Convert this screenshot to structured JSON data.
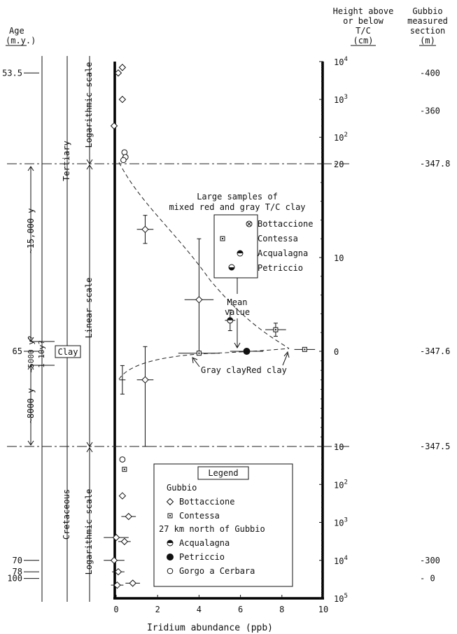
{
  "headers": {
    "age": [
      "Age",
      "(m.y.)"
    ],
    "height": [
      "Height above",
      "or below",
      "T/C",
      "(cm)"
    ],
    "section": [
      "Gubbio",
      "measured",
      "section",
      "(m)"
    ]
  },
  "scales": {
    "log_top": "Logarithmic scale",
    "linear": "Linear scale",
    "log_bottom": "Logarithmic scale"
  },
  "periods": {
    "tertiary": "Tertiary",
    "clay": "Clay",
    "cretaceous": "Cretaceous"
  },
  "durations": {
    "d15000": "~15,000 y",
    "d5000": "~5000 y?",
    "d110": "1-10y?",
    "d8000": "~8000 y"
  },
  "age_labels": [
    {
      "label": "53.5",
      "height": 5000
    },
    {
      "label": "65",
      "height": 0
    },
    {
      "label": "70",
      "height": -10000
    },
    {
      "label": "78",
      "height": -20000
    },
    {
      "label": "100",
      "height": -30000
    }
  ],
  "section_labels": [
    {
      "label": "-400",
      "height": 5000
    },
    {
      "label": "-360",
      "height": 500
    },
    {
      "label": "-347.8",
      "height": 20
    },
    {
      "label": "-347.6",
      "height": 0
    },
    {
      "label": "-347.5",
      "height": -10
    },
    {
      "label": "-300",
      "height": -10000
    },
    {
      "label": "- 0",
      "height": -30000
    }
  ],
  "height_ticks": [
    {
      "label": "10",
      "sup": "4",
      "height": 10000
    },
    {
      "label": "10",
      "sup": "3",
      "height": 1000
    },
    {
      "label": "10",
      "sup": "2",
      "height": 100
    },
    {
      "label": "20",
      "sup": "",
      "height": 20
    },
    {
      "label": "10",
      "sup": "",
      "height": 10
    },
    {
      "label": "0",
      "sup": "",
      "height": 0
    },
    {
      "label": "10",
      "sup": "",
      "height": -10
    },
    {
      "label": "10",
      "sup": "2",
      "height": -100
    },
    {
      "label": "10",
      "sup": "3",
      "height": -1000
    },
    {
      "label": "10",
      "sup": "4",
      "height": -10000
    },
    {
      "label": "10",
      "sup": "5",
      "height": -100000
    }
  ],
  "chart_data": {
    "type": "scatter",
    "xlabel": "Iridium abundance (ppb)",
    "ylabel": "Height above or below T/C (cm)",
    "xlim": [
      0,
      10
    ],
    "x_ticks": [
      0,
      2,
      4,
      6,
      8,
      10
    ],
    "y_scale": "log / linear / log (linear between -10 and 20 cm)",
    "series": [
      {
        "name": "Bottaccione",
        "marker": "diamond",
        "points": [
          {
            "x": 0.3,
            "y": 7000
          },
          {
            "x": 0.1,
            "y": 5000
          },
          {
            "x": 0.3,
            "y": 1000
          },
          {
            "x": -0.1,
            "y": 200
          },
          {
            "x": 1.4,
            "y": 13
          },
          {
            "x": 4.0,
            "y": 5.5
          },
          {
            "x": 1.4,
            "y": -3
          },
          {
            "x": 0.3,
            "y": -200
          },
          {
            "x": 0.6,
            "y": -700
          },
          {
            "x": 0.0,
            "y": -2500
          },
          {
            "x": 0.4,
            "y": -3200
          },
          {
            "x": -0.1,
            "y": -10000
          },
          {
            "x": 0.1,
            "y": -20000
          },
          {
            "x": 0.8,
            "y": -40000
          },
          {
            "x": 0.05,
            "y": -45000
          }
        ]
      },
      {
        "name": "Contessa",
        "marker": "square",
        "points": [
          {
            "x": 4.0,
            "y": -0.2
          },
          {
            "x": 7.7,
            "y": 2.3
          },
          {
            "x": 9.1,
            "y": 0.2
          },
          {
            "x": 0.4,
            "y": -40
          }
        ]
      },
      {
        "name": "Acqualagna",
        "marker": "half-top",
        "points": [
          {
            "x": 5.5,
            "y": 3.3
          }
        ]
      },
      {
        "name": "Petriccio",
        "marker": "half-bottom",
        "points": []
      },
      {
        "name": "Gorgo a Cerbara",
        "marker": "circle",
        "points": [
          {
            "x": 0.4,
            "y": 40
          },
          {
            "x": 0.45,
            "y": 30
          },
          {
            "x": 0.35,
            "y": 25
          },
          {
            "x": 0.3,
            "y": -22
          }
        ]
      },
      {
        "name": "Mean value",
        "marker": "filled-circle",
        "points": [
          {
            "x": 6.3,
            "y": 0
          }
        ]
      }
    ],
    "inset": {
      "title": [
        "Large samples of",
        "mixed red and gray T/C clay"
      ],
      "entries": [
        "Bottaccione",
        "Contessa",
        "Acqualagna",
        "Petriccio"
      ]
    },
    "annotations": {
      "mean": [
        "Mean",
        "value"
      ],
      "gray": "Gray clay",
      "red": "Red clay"
    },
    "legend": {
      "title": "Legend",
      "group1": "Gubbio",
      "group1_items": [
        "Bottaccione",
        "Contessa"
      ],
      "group2": "27 km north of Gubbio",
      "group2_items": [
        "Acqualagna",
        "Petriccio",
        "Gorgo a Cerbara"
      ]
    }
  }
}
